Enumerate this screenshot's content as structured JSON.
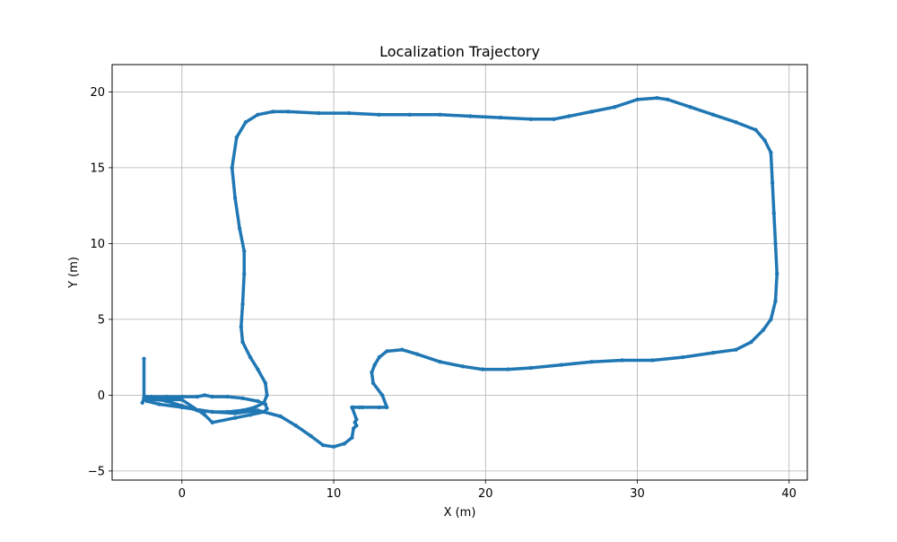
{
  "chart_data": {
    "type": "line",
    "title": "Localization Trajectory",
    "xlabel": "X (m)",
    "ylabel": "Y (m)",
    "xlim": [
      -4.6,
      41.2
    ],
    "ylim": [
      -5.6,
      21.8
    ],
    "xticks": [
      0,
      10,
      20,
      30,
      40
    ],
    "yticks": [
      -5,
      0,
      5,
      10,
      15,
      20
    ],
    "xtick_labels": [
      "0",
      "10",
      "20",
      "30",
      "40"
    ],
    "ytick_labels": [
      "−5",
      "0",
      "5",
      "10",
      "15",
      "20"
    ],
    "grid": true,
    "legend": "none",
    "line_color": "#1f77b4",
    "marker": "dot",
    "series": [
      {
        "x": [
          -2.5,
          -2.5,
          -2.6,
          -2.5,
          -2.3,
          -2.0,
          -1.0,
          0.0,
          1.0,
          1.5,
          2.0,
          3.0,
          4.0,
          5.0,
          5.5,
          5.6,
          5.4,
          4.5,
          3.5,
          2.0,
          1.5,
          0.0,
          -1.5,
          -2.3,
          -1.5,
          0.0,
          2.0,
          3.5,
          5.0,
          6.5,
          7.5,
          8.5,
          9.3,
          10.0,
          10.7,
          11.2,
          11.3,
          11.5,
          11.4,
          11.5,
          11.2,
          11.7,
          11.9,
          11.3,
          13.0,
          13.5,
          13.2,
          12.6,
          12.5,
          12.7,
          13.0,
          13.5,
          14.5,
          15.5,
          17.0,
          18.5,
          19.8,
          21.5,
          23.0,
          25.0,
          27.0,
          29.0,
          31.0,
          33.0,
          35.0,
          36.5,
          37.5,
          38.3,
          38.8,
          39.1,
          39.2,
          39.1,
          39.0,
          38.9,
          38.8,
          38.4,
          37.8,
          36.5,
          35.0,
          33.5,
          32.0,
          31.3,
          30.0,
          28.5,
          27.0,
          25.5,
          24.5,
          23.0,
          21.0,
          19.0,
          17.0,
          15.0,
          13.0,
          11.0,
          9.0,
          7.0,
          6.0,
          5.0,
          4.2,
          3.6,
          3.3,
          3.5,
          3.8,
          4.1,
          4.1,
          4.0,
          3.9,
          4.0,
          4.5,
          5.0,
          5.5,
          5.6,
          5.4,
          4.8,
          4.0,
          3.0,
          2.0,
          1.0,
          0.0,
          -1.0,
          -2.0,
          -2.4
        ],
        "y": [
          2.4,
          -0.2,
          -0.5,
          -0.3,
          -0.1,
          -0.1,
          -0.1,
          -0.1,
          -0.1,
          0.0,
          -0.1,
          -0.1,
          -0.2,
          -0.4,
          -0.6,
          -0.9,
          -1.1,
          -1.3,
          -1.5,
          -1.8,
          -1.3,
          -0.3,
          -0.3,
          -0.4,
          -0.6,
          -0.8,
          -1.1,
          -1.2,
          -1.0,
          -1.4,
          -2.0,
          -2.7,
          -3.3,
          -3.4,
          -3.2,
          -2.8,
          -2.2,
          -2.0,
          -1.8,
          -1.6,
          -0.8,
          -0.8,
          -0.8,
          -0.8,
          -0.8,
          -0.8,
          0.0,
          0.8,
          1.5,
          2.0,
          2.5,
          2.9,
          3.0,
          2.7,
          2.2,
          1.9,
          1.7,
          1.7,
          1.8,
          2.0,
          2.2,
          2.3,
          2.3,
          2.5,
          2.8,
          3.0,
          3.5,
          4.3,
          5.0,
          6.2,
          8.0,
          10.0,
          12.0,
          14.0,
          16.0,
          16.8,
          17.5,
          18.0,
          18.5,
          19.0,
          19.5,
          19.6,
          19.5,
          19.0,
          18.7,
          18.4,
          18.2,
          18.2,
          18.3,
          18.4,
          18.5,
          18.5,
          18.5,
          18.6,
          18.6,
          18.7,
          18.7,
          18.5,
          18.0,
          17.0,
          15.0,
          13.0,
          11.0,
          9.5,
          8.0,
          6.0,
          4.5,
          3.5,
          2.5,
          1.7,
          0.8,
          0.0,
          -0.5,
          -0.8,
          -1.0,
          -1.1,
          -1.1,
          -1.0,
          -0.7,
          -0.4,
          -0.2,
          -0.2
        ]
      }
    ]
  }
}
